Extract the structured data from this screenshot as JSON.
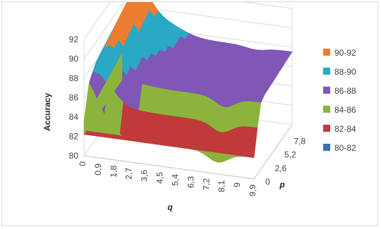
{
  "chart_data": {
    "type": "surface",
    "title": "",
    "zlabel": "Accuracy",
    "xlabel": "q",
    "ylabel": "p",
    "zlim": [
      80,
      92
    ],
    "z_ticks": [
      "80",
      "82",
      "84",
      "86",
      "88",
      "90",
      "92"
    ],
    "x_ticks": [
      "0",
      "0,9",
      "1,8",
      "2,7",
      "3,6",
      "4,5",
      "5,4",
      "6,3",
      "7,2",
      "8,1",
      "9",
      "9,9"
    ],
    "y_ticks": [
      "0",
      "2,6",
      "5,2",
      "7,8"
    ],
    "legend": [
      {
        "label": "90-92",
        "color": "#ed7d31"
      },
      {
        "label": "88-90",
        "color": "#2aa8c4"
      },
      {
        "label": "86-88",
        "color": "#7f57b6"
      },
      {
        "label": "84-86",
        "color": "#8cb43c"
      },
      {
        "label": "82-84",
        "color": "#c0393b"
      },
      {
        "label": "80-82",
        "color": "#3e6fb0"
      }
    ]
  }
}
